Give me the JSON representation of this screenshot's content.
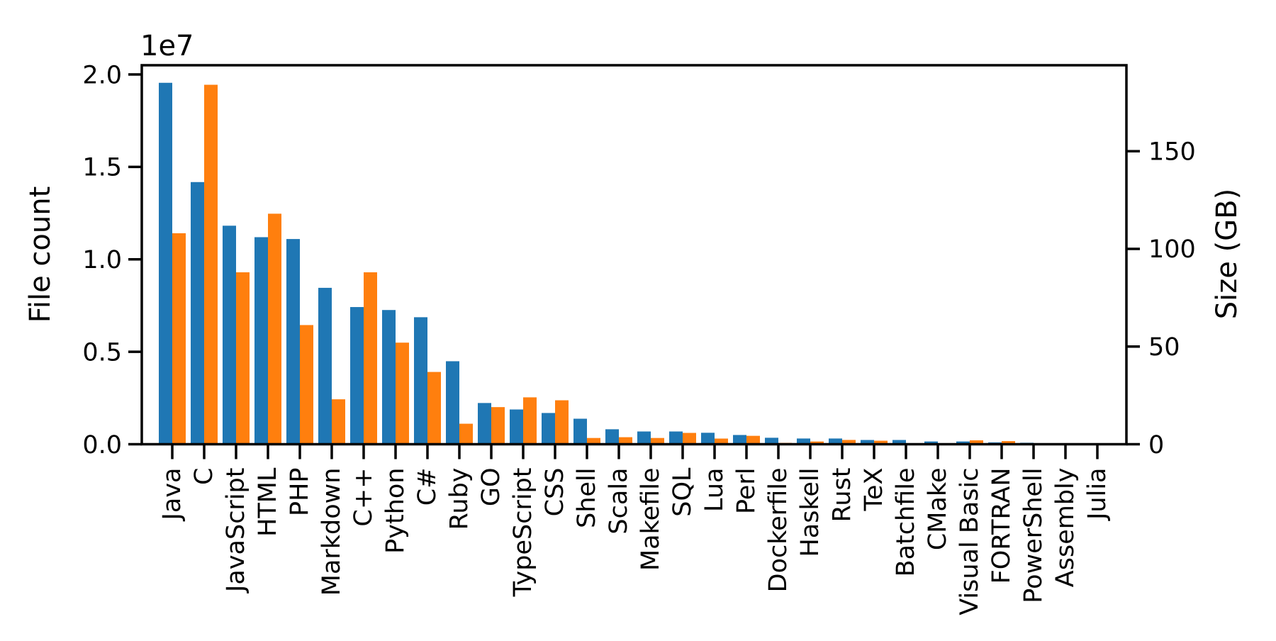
{
  "chart_data": {
    "type": "bar",
    "title": "",
    "offset_label": "1e7",
    "ylabel_left": "File count",
    "ylabel_right": "Size (GB)",
    "categories": [
      "Java",
      "C",
      "JavaScript",
      "HTML",
      "PHP",
      "Markdown",
      "C++",
      "Python",
      "C#",
      "Ruby",
      "GO",
      "TypeScript",
      "CSS",
      "Shell",
      "Scala",
      "Makefile",
      "SQL",
      "Lua",
      "Perl",
      "Dockerfile",
      "Haskell",
      "Rust",
      "TeX",
      "Batchfile",
      "CMake",
      "Visual Basic",
      "FORTRAN",
      "PowerShell",
      "Assembly",
      "Julia"
    ],
    "series": [
      {
        "name": "File count",
        "axis": "left",
        "color": "#1f77b4",
        "values": [
          19550000,
          14180000,
          11820000,
          11200000,
          11100000,
          8460000,
          7420000,
          7260000,
          6870000,
          4490000,
          2230000,
          1880000,
          1690000,
          1380000,
          810000,
          690000,
          690000,
          620000,
          500000,
          350000,
          310000,
          310000,
          230000,
          230000,
          150000,
          150000,
          100000,
          80000,
          40000,
          30000
        ]
      },
      {
        "name": "Size (GB)",
        "axis": "right",
        "color": "#ff7f0e",
        "values": [
          108,
          184,
          88,
          118,
          61,
          23,
          88,
          52,
          37,
          10.5,
          19,
          24,
          22.5,
          3.2,
          3.6,
          3.2,
          5.8,
          2.9,
          4.3,
          0.7,
          1.4,
          2.2,
          1.8,
          0.4,
          0.3,
          2.0,
          1.6,
          0.3,
          0.55,
          0.3
        ]
      }
    ],
    "ylim_left": [
      0,
      20500000
    ],
    "ylim_right": [
      0,
      194
    ],
    "yticks_left": {
      "values": [
        0,
        5000000,
        10000000,
        15000000,
        20000000
      ],
      "labels": [
        "0.0",
        "0.5",
        "1.0",
        "1.5",
        "2.0"
      ]
    },
    "yticks_right": {
      "values": [
        0,
        50,
        100,
        150
      ],
      "labels": [
        "0",
        "50",
        "100",
        "150"
      ]
    },
    "grid": false,
    "legend": "none",
    "xlabel": ""
  }
}
